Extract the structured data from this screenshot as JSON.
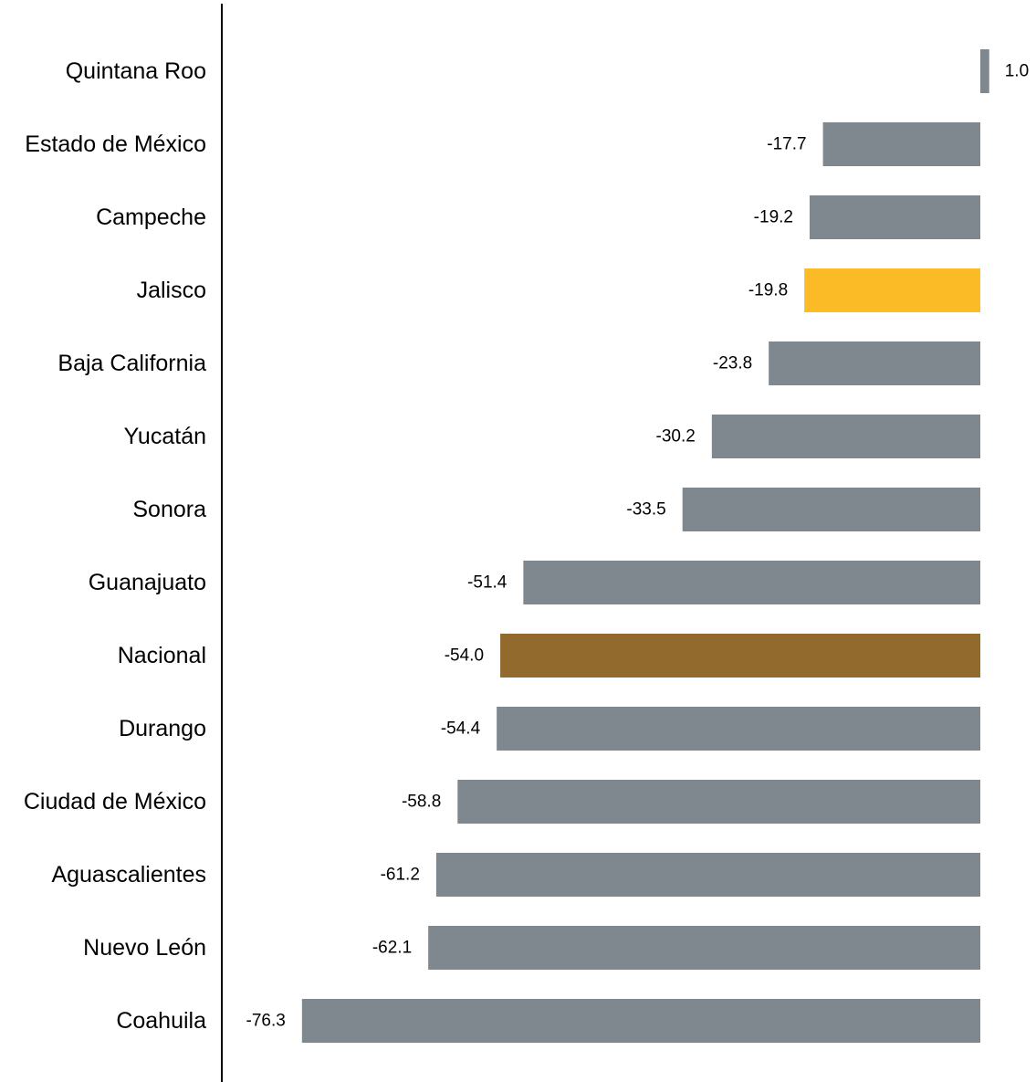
{
  "chart_data": {
    "type": "bar",
    "orientation": "horizontal",
    "title": "",
    "xlabel": "",
    "ylabel": "",
    "categories": [
      "Quintana Roo",
      "Estado de México",
      "Campeche",
      "Jalisco",
      "Baja California",
      "Yucatán",
      "Sonora",
      "Guanajuato",
      "Nacional",
      "Durango",
      "Ciudad de México",
      "Aguascalientes",
      "Nuevo León",
      "Coahuila"
    ],
    "values": [
      1.0,
      -17.7,
      -19.2,
      -19.8,
      -23.8,
      -30.2,
      -33.5,
      -51.4,
      -54.0,
      -54.4,
      -58.8,
      -61.2,
      -62.1,
      -76.3
    ],
    "value_labels": [
      "1.0",
      "-17.7",
      "-19.2",
      "-19.8",
      "-23.8",
      "-30.2",
      "-33.5",
      "-51.4",
      "-54.0",
      "-54.4",
      "-58.8",
      "-61.2",
      "-62.1",
      "-76.3"
    ],
    "colors": {
      "default": "#7f888e",
      "highlight": "#fbbb27",
      "national": "#936a2e"
    },
    "highlights": {
      "Jalisco": "highlight",
      "Nacional": "national"
    },
    "xlim": [
      -85,
      1.0
    ],
    "grid": false,
    "legend": "none"
  }
}
